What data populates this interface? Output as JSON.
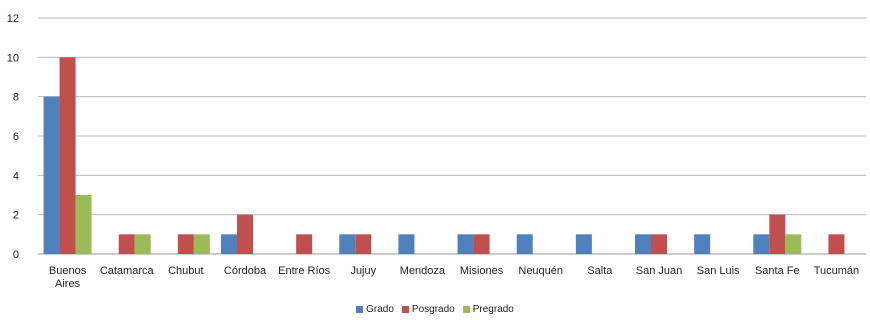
{
  "chart_data": {
    "type": "bar",
    "categories": [
      [
        "Buenos",
        "Aires"
      ],
      [
        "Catamarca"
      ],
      [
        "Chubut"
      ],
      [
        "Córdoba"
      ],
      [
        "Entre Ríos"
      ],
      [
        "Jujuy"
      ],
      [
        "Mendoza"
      ],
      [
        "Misiones"
      ],
      [
        "Neuquén"
      ],
      [
        "Salta"
      ],
      [
        "San Juan"
      ],
      [
        "San Luis"
      ],
      [
        "Santa Fe"
      ],
      [
        "Tucumán"
      ]
    ],
    "series": [
      {
        "name": "Grado",
        "color": "#4f81bd",
        "values": [
          8,
          0,
          0,
          1,
          0,
          1,
          1,
          1,
          1,
          1,
          1,
          1,
          1,
          0
        ]
      },
      {
        "name": "Posgrado",
        "color": "#c0504d",
        "values": [
          10,
          1,
          1,
          2,
          1,
          1,
          0,
          1,
          0,
          0,
          1,
          0,
          2,
          1
        ]
      },
      {
        "name": "Pregrado",
        "color": "#9bbb59",
        "values": [
          3,
          1,
          1,
          0,
          0,
          0,
          0,
          0,
          0,
          0,
          0,
          0,
          1,
          0
        ]
      }
    ],
    "ylim": [
      0,
      12
    ],
    "yticks": [
      "0",
      "2",
      "4",
      "6",
      "8",
      "10",
      "12"
    ],
    "grid": true,
    "legend_position": "bottom"
  }
}
